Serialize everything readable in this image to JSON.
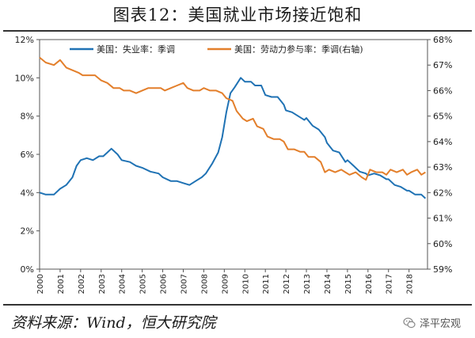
{
  "figure": {
    "title": "图表12：美国就业市场接近饱和",
    "source": "资料来源：Wind，恒大研究院",
    "brand": "泽平宏观",
    "brand_icon": "wechat-icon"
  },
  "chart_data": {
    "type": "line",
    "title": "图表12：美国就业市场接近饱和",
    "xlabel": "",
    "ylabel": "",
    "grid": false,
    "legend_position": "top",
    "x_ticks": [
      "2000",
      "2001",
      "2002",
      "2003",
      "2004",
      "2005",
      "2006",
      "2007",
      "2008",
      "2009",
      "2010",
      "2011",
      "2012",
      "2013",
      "2014",
      "2015",
      "2016",
      "2017",
      "2018"
    ],
    "y_left": {
      "ticks": [
        "0%",
        "2%",
        "4%",
        "6%",
        "8%",
        "10%",
        "12%"
      ],
      "range": [
        0,
        12
      ]
    },
    "y_right": {
      "ticks": [
        "59%",
        "60%",
        "61%",
        "62%",
        "63%",
        "64%",
        "65%",
        "66%",
        "67%",
        "68%"
      ],
      "range": [
        59,
        68
      ]
    },
    "x_range": [
      2000.0,
      2018.9
    ],
    "series": [
      {
        "name": "美国：失业率：季调",
        "axis": "left",
        "color": "#1f72b4",
        "points": [
          [
            2000.0,
            4.0
          ],
          [
            2000.3,
            3.9
          ],
          [
            2000.7,
            3.9
          ],
          [
            2001.0,
            4.2
          ],
          [
            2001.3,
            4.4
          ],
          [
            2001.6,
            4.8
          ],
          [
            2001.8,
            5.4
          ],
          [
            2002.0,
            5.7
          ],
          [
            2002.3,
            5.8
          ],
          [
            2002.6,
            5.7
          ],
          [
            2002.9,
            5.9
          ],
          [
            2003.1,
            5.9
          ],
          [
            2003.3,
            6.1
          ],
          [
            2003.5,
            6.3
          ],
          [
            2003.8,
            6.0
          ],
          [
            2004.0,
            5.7
          ],
          [
            2004.4,
            5.6
          ],
          [
            2004.7,
            5.4
          ],
          [
            2005.0,
            5.3
          ],
          [
            2005.4,
            5.1
          ],
          [
            2005.8,
            5.0
          ],
          [
            2006.0,
            4.8
          ],
          [
            2006.4,
            4.6
          ],
          [
            2006.7,
            4.6
          ],
          [
            2007.0,
            4.5
          ],
          [
            2007.3,
            4.4
          ],
          [
            2007.6,
            4.6
          ],
          [
            2007.9,
            4.8
          ],
          [
            2008.1,
            5.0
          ],
          [
            2008.4,
            5.5
          ],
          [
            2008.7,
            6.1
          ],
          [
            2008.9,
            6.9
          ],
          [
            2009.1,
            8.2
          ],
          [
            2009.3,
            9.2
          ],
          [
            2009.5,
            9.5
          ],
          [
            2009.8,
            10.0
          ],
          [
            2010.0,
            9.8
          ],
          [
            2010.3,
            9.8
          ],
          [
            2010.5,
            9.6
          ],
          [
            2010.8,
            9.6
          ],
          [
            2011.0,
            9.1
          ],
          [
            2011.3,
            9.0
          ],
          [
            2011.6,
            9.0
          ],
          [
            2011.9,
            8.6
          ],
          [
            2012.0,
            8.3
          ],
          [
            2012.3,
            8.2
          ],
          [
            2012.6,
            8.0
          ],
          [
            2012.9,
            7.8
          ],
          [
            2013.0,
            7.9
          ],
          [
            2013.3,
            7.5
          ],
          [
            2013.6,
            7.3
          ],
          [
            2013.9,
            6.9
          ],
          [
            2014.0,
            6.6
          ],
          [
            2014.3,
            6.2
          ],
          [
            2014.6,
            6.1
          ],
          [
            2014.9,
            5.6
          ],
          [
            2015.0,
            5.7
          ],
          [
            2015.3,
            5.4
          ],
          [
            2015.6,
            5.1
          ],
          [
            2015.9,
            5.0
          ],
          [
            2016.0,
            4.9
          ],
          [
            2016.3,
            5.0
          ],
          [
            2016.6,
            4.9
          ],
          [
            2016.9,
            4.7
          ],
          [
            2017.0,
            4.7
          ],
          [
            2017.3,
            4.4
          ],
          [
            2017.6,
            4.3
          ],
          [
            2017.9,
            4.1
          ],
          [
            2018.0,
            4.1
          ],
          [
            2018.3,
            3.9
          ],
          [
            2018.6,
            3.9
          ],
          [
            2018.8,
            3.7
          ]
        ]
      },
      {
        "name": "美国：劳动力参与率：季调(右轴)",
        "axis": "right",
        "color": "#e37f2b",
        "points": [
          [
            2000.0,
            67.3
          ],
          [
            2000.3,
            67.1
          ],
          [
            2000.7,
            67.0
          ],
          [
            2001.0,
            67.2
          ],
          [
            2001.3,
            66.9
          ],
          [
            2001.6,
            66.8
          ],
          [
            2001.9,
            66.7
          ],
          [
            2002.1,
            66.6
          ],
          [
            2002.4,
            66.6
          ],
          [
            2002.7,
            66.6
          ],
          [
            2003.0,
            66.4
          ],
          [
            2003.3,
            66.3
          ],
          [
            2003.6,
            66.1
          ],
          [
            2003.9,
            66.1
          ],
          [
            2004.1,
            66.0
          ],
          [
            2004.4,
            66.0
          ],
          [
            2004.7,
            65.9
          ],
          [
            2005.0,
            66.0
          ],
          [
            2005.3,
            66.1
          ],
          [
            2005.6,
            66.1
          ],
          [
            2005.9,
            66.1
          ],
          [
            2006.1,
            66.0
          ],
          [
            2006.4,
            66.1
          ],
          [
            2006.7,
            66.2
          ],
          [
            2007.0,
            66.3
          ],
          [
            2007.2,
            66.1
          ],
          [
            2007.5,
            66.0
          ],
          [
            2007.8,
            66.0
          ],
          [
            2008.0,
            66.1
          ],
          [
            2008.3,
            66.0
          ],
          [
            2008.6,
            66.0
          ],
          [
            2008.9,
            65.9
          ],
          [
            2009.1,
            65.7
          ],
          [
            2009.4,
            65.6
          ],
          [
            2009.6,
            65.2
          ],
          [
            2009.9,
            64.9
          ],
          [
            2010.1,
            64.8
          ],
          [
            2010.4,
            64.9
          ],
          [
            2010.6,
            64.6
          ],
          [
            2010.9,
            64.5
          ],
          [
            2011.1,
            64.2
          ],
          [
            2011.4,
            64.1
          ],
          [
            2011.7,
            64.1
          ],
          [
            2011.9,
            64.0
          ],
          [
            2012.1,
            63.7
          ],
          [
            2012.4,
            63.7
          ],
          [
            2012.7,
            63.6
          ],
          [
            2012.9,
            63.6
          ],
          [
            2013.1,
            63.4
          ],
          [
            2013.4,
            63.4
          ],
          [
            2013.7,
            63.2
          ],
          [
            2013.9,
            62.8
          ],
          [
            2014.1,
            62.9
          ],
          [
            2014.4,
            62.8
          ],
          [
            2014.7,
            62.9
          ],
          [
            2014.9,
            62.8
          ],
          [
            2015.1,
            62.7
          ],
          [
            2015.4,
            62.8
          ],
          [
            2015.7,
            62.6
          ],
          [
            2015.9,
            62.5
          ],
          [
            2016.1,
            62.9
          ],
          [
            2016.4,
            62.8
          ],
          [
            2016.7,
            62.8
          ],
          [
            2016.9,
            62.7
          ],
          [
            2017.1,
            62.9
          ],
          [
            2017.4,
            62.8
          ],
          [
            2017.7,
            62.9
          ],
          [
            2017.9,
            62.7
          ],
          [
            2018.1,
            62.8
          ],
          [
            2018.4,
            62.9
          ],
          [
            2018.6,
            62.7
          ],
          [
            2018.8,
            62.8
          ]
        ]
      }
    ]
  }
}
